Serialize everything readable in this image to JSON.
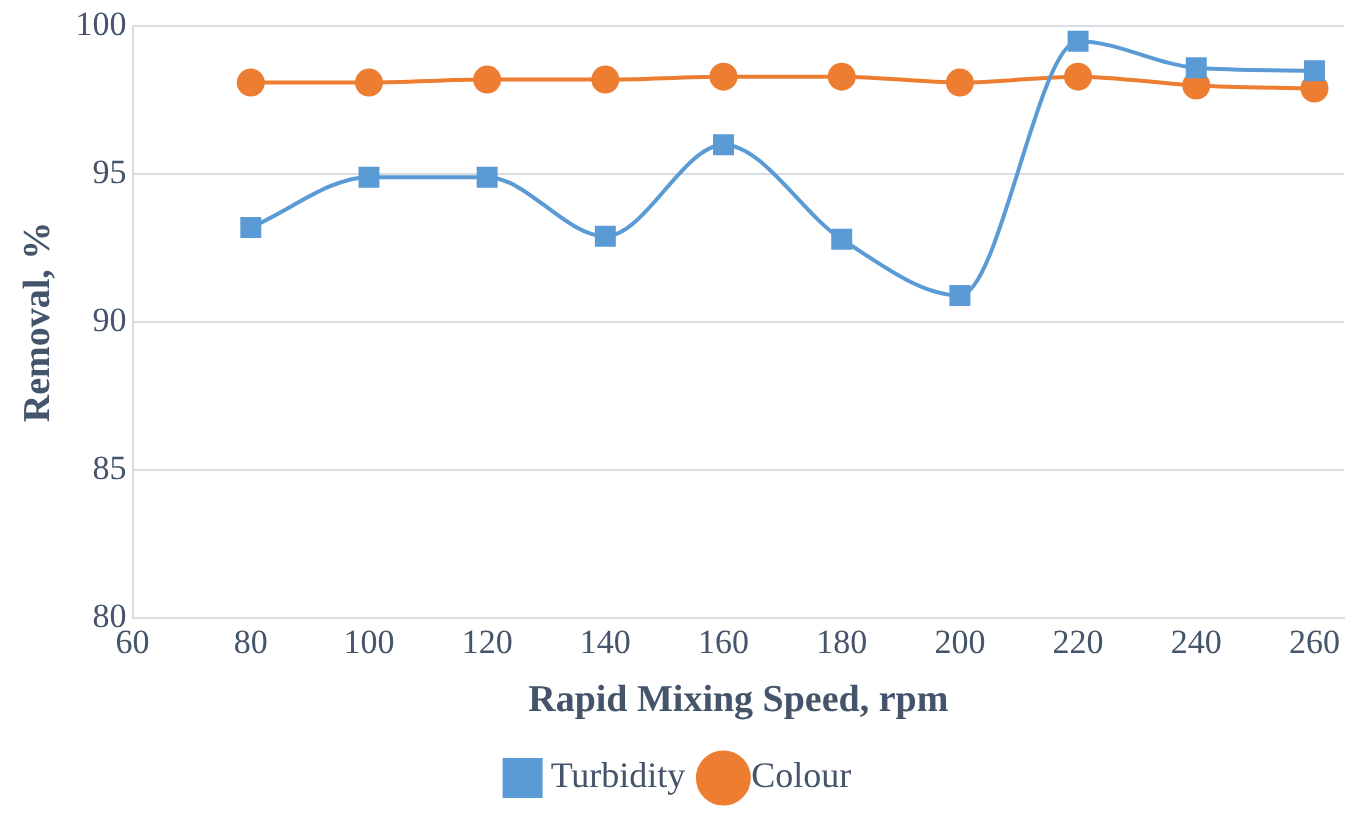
{
  "chart_data": {
    "type": "line",
    "xlabel": "Rapid Mixing Speed, rpm",
    "ylabel": "Removal, %",
    "x": [
      80,
      100,
      120,
      140,
      160,
      180,
      200,
      220,
      240,
      260
    ],
    "series": [
      {
        "name": "Turbidity",
        "color": "#5b9bd5",
        "marker": "square",
        "values": [
          93.2,
          94.9,
          94.9,
          92.9,
          96.0,
          92.8,
          90.9,
          99.5,
          98.6,
          98.5
        ]
      },
      {
        "name": "Colour",
        "color": "#ed7d31",
        "marker": "circle",
        "values": [
          98.1,
          98.1,
          98.2,
          98.2,
          98.3,
          98.3,
          98.1,
          98.3,
          98.0,
          97.9
        ]
      }
    ],
    "xlim": [
      60,
      265
    ],
    "xticks": [
      60,
      80,
      100,
      120,
      140,
      160,
      180,
      200,
      220,
      240,
      260
    ],
    "ylim": [
      80,
      100
    ],
    "yticks": [
      80,
      85,
      90,
      95,
      100
    ],
    "grid": "y",
    "legend": "bottom",
    "line_style": "solid"
  }
}
